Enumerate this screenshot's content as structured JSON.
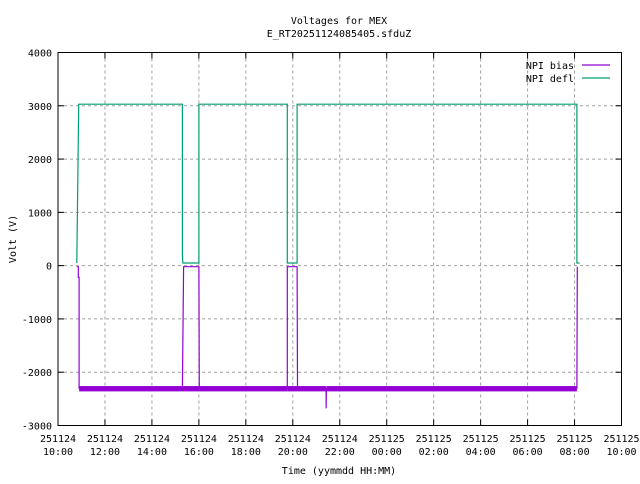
{
  "chart_data": {
    "type": "line",
    "title": "Voltages for MEX",
    "subtitle": "E_RT20251124085405.sfduZ",
    "xlabel": "Time (yymmdd HH:MM)",
    "ylabel": "Volt (V)",
    "xlim": [
      "251124 10:00",
      "251125 10:00"
    ],
    "ylim": [
      -3000,
      4000
    ],
    "grid": true,
    "legend_position": "top-right",
    "x_ticks": [
      {
        "date": "251124",
        "time": "10:00"
      },
      {
        "date": "251124",
        "time": "12:00"
      },
      {
        "date": "251124",
        "time": "14:00"
      },
      {
        "date": "251124",
        "time": "16:00"
      },
      {
        "date": "251124",
        "time": "18:00"
      },
      {
        "date": "251124",
        "time": "20:00"
      },
      {
        "date": "251124",
        "time": "22:00"
      },
      {
        "date": "251125",
        "time": "00:00"
      },
      {
        "date": "251125",
        "time": "02:00"
      },
      {
        "date": "251125",
        "time": "04:00"
      },
      {
        "date": "251125",
        "time": "06:00"
      },
      {
        "date": "251125",
        "time": "08:00"
      },
      {
        "date": "251125",
        "time": "10:00"
      }
    ],
    "y_ticks": [
      "4000",
      "3000",
      "2000",
      "1000",
      "0",
      "-1000",
      "-2000",
      "-3000"
    ],
    "series": [
      {
        "name": "NPI bias",
        "color": "#9400d3",
        "points": [
          [
            "251124 10:48",
            -20
          ],
          [
            "251124 10:52",
            -20
          ],
          [
            "251124 10:52",
            -220
          ],
          [
            "251124 10:54",
            -220
          ],
          [
            "251124 10:54",
            -2300
          ],
          [
            "251124 15:18",
            -2300
          ],
          [
            "251124 15:21",
            -20
          ],
          [
            "251124 16:00",
            -20
          ],
          [
            "251124 16:01",
            -2300
          ],
          [
            "251124 19:46",
            -2300
          ],
          [
            "251124 19:46",
            -20
          ],
          [
            "251124 20:11",
            -20
          ],
          [
            "251124 20:12",
            -2300
          ],
          [
            "251124 21:25",
            -2300
          ],
          [
            "251124 21:25",
            -2680
          ],
          [
            "251124 21:26",
            -2300
          ],
          [
            "251125 08:06",
            -2300
          ],
          [
            "251125 08:07",
            -20
          ]
        ]
      },
      {
        "name": "NPI defl",
        "color": "#009e73",
        "points": [
          [
            "251124 10:48",
            50
          ],
          [
            "251124 10:53",
            3030
          ],
          [
            "251124 15:18",
            3030
          ],
          [
            "251124 15:18",
            200
          ],
          [
            "251124 15:19",
            50
          ],
          [
            "251124 16:00",
            50
          ],
          [
            "251124 16:00",
            3030
          ],
          [
            "251124 19:46",
            3030
          ],
          [
            "251124 19:46",
            50
          ],
          [
            "251124 20:11",
            50
          ],
          [
            "251124 20:11",
            3030
          ],
          [
            "251125 08:06",
            3030
          ],
          [
            "251125 08:06",
            50
          ],
          [
            "251125 08:13",
            50
          ]
        ]
      }
    ]
  }
}
